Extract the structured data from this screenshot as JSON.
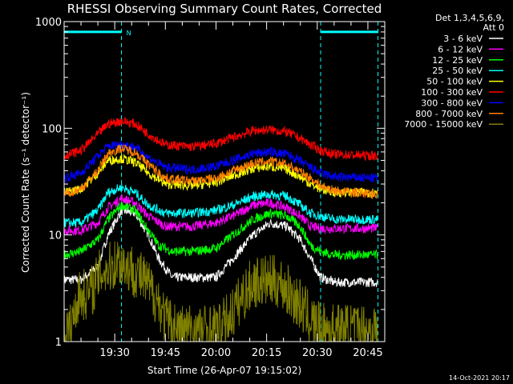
{
  "chart_data": {
    "type": "line",
    "title": "RHESSI Observing Summary Count Rates, Corrected",
    "xlabel": "Start Time (26-Apr-07 19:15:02)",
    "ylabel": "Corrected Count Rate (s⁻¹ detector⁻¹)",
    "y_scale": "log",
    "ylim": [
      1,
      1000
    ],
    "xlim_minutes": [
      0,
      95
    ],
    "x_ticks": [
      {
        "label": "19:30",
        "min": 15
      },
      {
        "label": "19:45",
        "min": 30
      },
      {
        "label": "20:00",
        "min": 45
      },
      {
        "label": "20:15",
        "min": 60
      },
      {
        "label": "20:30",
        "min": 75
      },
      {
        "label": "20:45",
        "min": 90
      }
    ],
    "y_ticks": [
      {
        "label": "1",
        "value": 1
      },
      {
        "label": "10",
        "value": 10
      },
      {
        "label": "100",
        "value": 100
      },
      {
        "label": "1000",
        "value": 1000
      }
    ],
    "legend_header": [
      "Det 1,3,4,5,6,9,",
      "Att 0"
    ],
    "legend_placement": "right",
    "night_marker": "N",
    "night_spans_minutes": [
      [
        0,
        17
      ],
      [
        76,
        93
      ]
    ],
    "night_level": 800,
    "series": [
      {
        "name": "3 - 6 keV",
        "color": "#ffffff",
        "values": [
          [
            0,
            3.8
          ],
          [
            5,
            3.8
          ],
          [
            10,
            5
          ],
          [
            13,
            10
          ],
          [
            17,
            17
          ],
          [
            21,
            16
          ],
          [
            25,
            10
          ],
          [
            28,
            6
          ],
          [
            32,
            4
          ],
          [
            38,
            4
          ],
          [
            45,
            4
          ],
          [
            50,
            6
          ],
          [
            56,
            10
          ],
          [
            61,
            13
          ],
          [
            66,
            12
          ],
          [
            70,
            9
          ],
          [
            73,
            6
          ],
          [
            76,
            4
          ],
          [
            80,
            3.6
          ],
          [
            93,
            3.6
          ]
        ]
      },
      {
        "name": "6 - 12 keV",
        "color": "#ff00ff",
        "values": [
          [
            0,
            11
          ],
          [
            5,
            11
          ],
          [
            10,
            13
          ],
          [
            13,
            18
          ],
          [
            17,
            22
          ],
          [
            21,
            20
          ],
          [
            25,
            15
          ],
          [
            30,
            12
          ],
          [
            38,
            12
          ],
          [
            45,
            13
          ],
          [
            50,
            15
          ],
          [
            56,
            19
          ],
          [
            61,
            20
          ],
          [
            66,
            18
          ],
          [
            70,
            15
          ],
          [
            73,
            12
          ],
          [
            76,
            11.5
          ],
          [
            93,
            11.5
          ]
        ]
      },
      {
        "name": "12 - 25 keV",
        "color": "#00ff00",
        "values": [
          [
            0,
            6.5
          ],
          [
            5,
            7
          ],
          [
            10,
            9
          ],
          [
            13,
            14
          ],
          [
            17,
            19
          ],
          [
            21,
            17
          ],
          [
            25,
            11
          ],
          [
            28,
            8
          ],
          [
            32,
            7
          ],
          [
            38,
            7
          ],
          [
            45,
            7.5
          ],
          [
            50,
            10
          ],
          [
            56,
            14
          ],
          [
            61,
            16
          ],
          [
            66,
            15
          ],
          [
            70,
            12
          ],
          [
            73,
            8
          ],
          [
            76,
            7
          ],
          [
            80,
            6.5
          ],
          [
            93,
            6.5
          ]
        ]
      },
      {
        "name": "25 - 50 keV",
        "color": "#00ffff",
        "values": [
          [
            0,
            13
          ],
          [
            5,
            13
          ],
          [
            10,
            17
          ],
          [
            13,
            25
          ],
          [
            17,
            28
          ],
          [
            21,
            25
          ],
          [
            25,
            19
          ],
          [
            30,
            16
          ],
          [
            38,
            16
          ],
          [
            45,
            17
          ],
          [
            50,
            19
          ],
          [
            56,
            23
          ],
          [
            61,
            24
          ],
          [
            66,
            23
          ],
          [
            70,
            19
          ],
          [
            73,
            16
          ],
          [
            76,
            15
          ],
          [
            80,
            14
          ],
          [
            93,
            14
          ]
        ]
      },
      {
        "name": "50 - 100 keV",
        "color": "#ffff00",
        "values": [
          [
            0,
            25
          ],
          [
            5,
            27
          ],
          [
            10,
            38
          ],
          [
            13,
            50
          ],
          [
            17,
            52
          ],
          [
            21,
            48
          ],
          [
            25,
            38
          ],
          [
            30,
            30
          ],
          [
            38,
            29
          ],
          [
            45,
            31
          ],
          [
            50,
            36
          ],
          [
            56,
            42
          ],
          [
            61,
            44
          ],
          [
            66,
            41
          ],
          [
            70,
            35
          ],
          [
            73,
            30
          ],
          [
            76,
            27
          ],
          [
            80,
            25
          ],
          [
            93,
            25
          ]
        ]
      },
      {
        "name": "100 - 300 keV",
        "color": "#ff0000",
        "values": [
          [
            0,
            55
          ],
          [
            5,
            62
          ],
          [
            10,
            88
          ],
          [
            13,
            110
          ],
          [
            17,
            117
          ],
          [
            21,
            110
          ],
          [
            25,
            88
          ],
          [
            30,
            70
          ],
          [
            38,
            67
          ],
          [
            45,
            72
          ],
          [
            50,
            82
          ],
          [
            56,
            95
          ],
          [
            61,
            97
          ],
          [
            66,
            92
          ],
          [
            70,
            80
          ],
          [
            73,
            70
          ],
          [
            76,
            62
          ],
          [
            80,
            57
          ],
          [
            93,
            55
          ]
        ]
      },
      {
        "name": "300 - 800 keV",
        "color": "#0000ff",
        "values": [
          [
            0,
            34
          ],
          [
            5,
            38
          ],
          [
            10,
            55
          ],
          [
            13,
            68
          ],
          [
            17,
            71
          ],
          [
            21,
            67
          ],
          [
            25,
            53
          ],
          [
            30,
            43
          ],
          [
            38,
            41
          ],
          [
            45,
            44
          ],
          [
            50,
            50
          ],
          [
            56,
            58
          ],
          [
            61,
            60
          ],
          [
            66,
            57
          ],
          [
            70,
            49
          ],
          [
            73,
            43
          ],
          [
            76,
            38
          ],
          [
            80,
            35
          ],
          [
            93,
            34
          ]
        ]
      },
      {
        "name": "800 - 7000 keV",
        "color": "#ff8000",
        "values": [
          [
            0,
            24
          ],
          [
            5,
            27
          ],
          [
            10,
            40
          ],
          [
            13,
            58
          ],
          [
            17,
            65
          ],
          [
            21,
            60
          ],
          [
            25,
            46
          ],
          [
            30,
            34
          ],
          [
            38,
            32
          ],
          [
            45,
            34
          ],
          [
            50,
            40
          ],
          [
            56,
            47
          ],
          [
            61,
            49
          ],
          [
            66,
            46
          ],
          [
            70,
            39
          ],
          [
            73,
            34
          ],
          [
            76,
            29
          ],
          [
            80,
            26
          ],
          [
            93,
            24
          ]
        ]
      },
      {
        "name": "7000 - 15000 keV",
        "color": "#808000",
        "values": [
          [
            0,
            1.3
          ],
          [
            2,
            1.3
          ],
          [
            4,
            2.6
          ],
          [
            8,
            3
          ],
          [
            11,
            4.5
          ],
          [
            14,
            5
          ],
          [
            16,
            5.8
          ],
          [
            19,
            5
          ],
          [
            22,
            4.3
          ],
          [
            25,
            3.3
          ],
          [
            28,
            2.4
          ],
          [
            30,
            1.6
          ],
          [
            34,
            1.3
          ],
          [
            40,
            1.3
          ],
          [
            46,
            1.3
          ],
          [
            50,
            1.9
          ],
          [
            53,
            2.7
          ],
          [
            56,
            3.6
          ],
          [
            60,
            3.7
          ],
          [
            64,
            3.6
          ],
          [
            67,
            2.8
          ],
          [
            70,
            2.2
          ],
          [
            73,
            1.6
          ],
          [
            76,
            1.3
          ],
          [
            93,
            1.3
          ]
        ]
      }
    ]
  },
  "footer": {
    "timestamp": "14-Oct-2021 20:17"
  }
}
